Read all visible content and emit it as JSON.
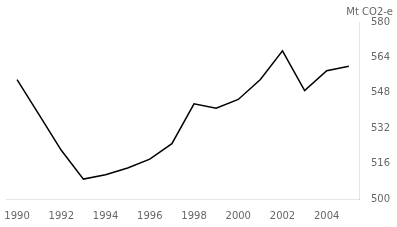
{
  "chart_data": {
    "type": "line",
    "ylabel": "Mt CO2-e",
    "x": [
      1990,
      1991,
      1992,
      1993,
      1994,
      1995,
      1996,
      1997,
      1998,
      1999,
      2000,
      2001,
      2002,
      2003,
      2004,
      2005
    ],
    "values": [
      554,
      538,
      522,
      509,
      511,
      514,
      518,
      525,
      543,
      541,
      545,
      554,
      567,
      549,
      558,
      560
    ],
    "color": "#000000",
    "xlim": [
      1989.5,
      2005.5
    ],
    "xticks": [
      1990,
      1992,
      1994,
      1996,
      1998,
      2000,
      2002,
      2004
    ],
    "ylim": [
      500,
      580
    ],
    "yticks": [
      500,
      516,
      532,
      548,
      564,
      580
    ],
    "grid": false
  }
}
